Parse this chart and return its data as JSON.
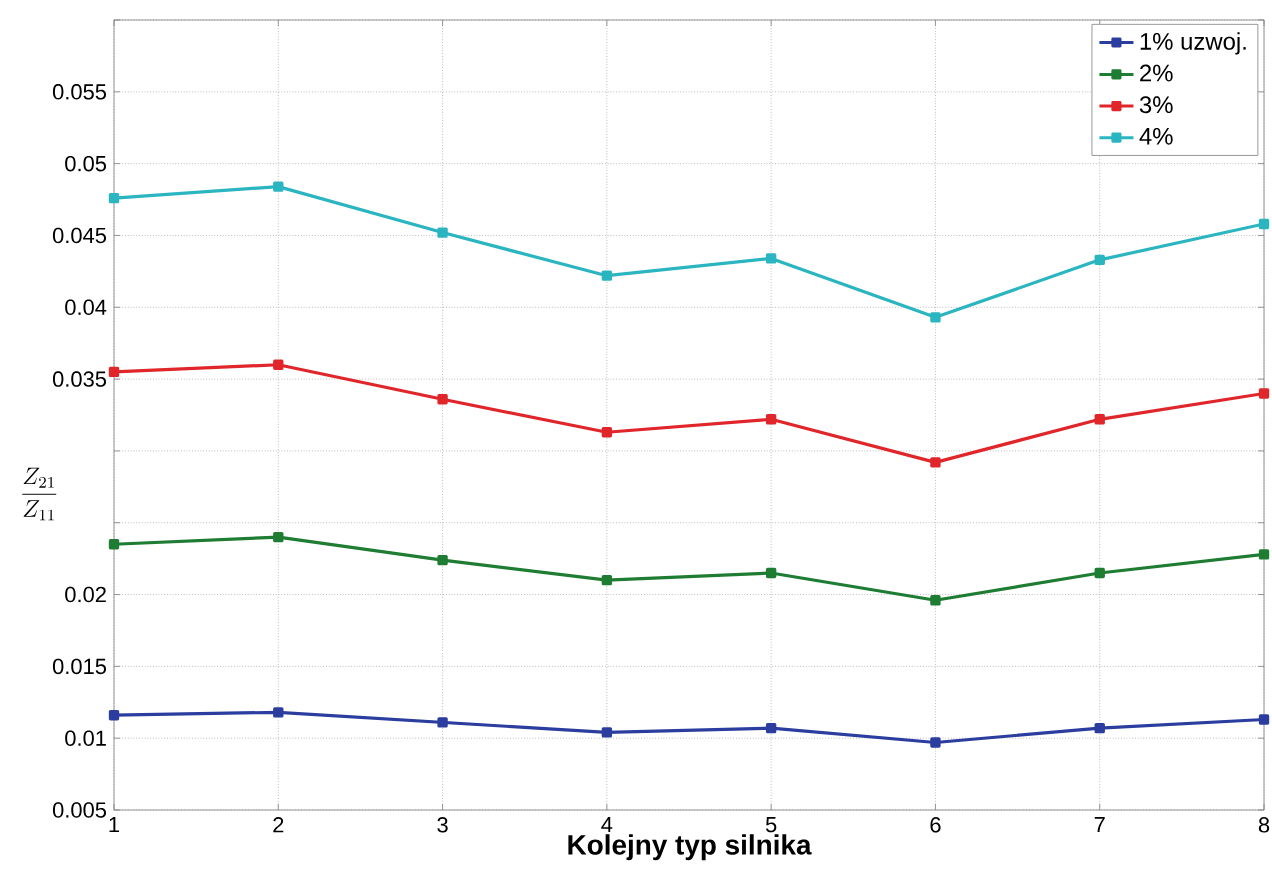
{
  "chart_data": {
    "type": "line",
    "xlabel": "Kolejny typ silnika",
    "ylabel": "\\frac{Z_{21}}{Z_{11}}",
    "x": [
      1,
      2,
      3,
      4,
      5,
      6,
      7,
      8
    ],
    "xlim": [
      1,
      8
    ],
    "xticks": [
      1,
      2,
      3,
      4,
      5,
      6,
      7,
      8
    ],
    "ylim": [
      0.005,
      0.06
    ],
    "yticks": [
      0.005,
      0.01,
      0.015,
      0.02,
      {
        "value": 0.025,
        "label": null
      },
      {
        "value": 0.03,
        "label": null
      },
      0.035,
      0.04,
      0.045,
      0.05,
      0.055,
      {
        "value": 0.06,
        "label": null
      }
    ],
    "grid": true,
    "legend": "top right",
    "marker": "square",
    "line_style": "solid",
    "series": [
      {
        "name": "1% uzwoj.",
        "color": "#2b3d9e",
        "values": [
          0.0116,
          0.0118,
          0.0111,
          0.0104,
          0.0107,
          0.0097,
          0.0107,
          0.0113
        ]
      },
      {
        "name": "2%",
        "color": "#1e7d32",
        "values": [
          0.0235,
          0.024,
          0.0224,
          0.021,
          0.0215,
          0.0196,
          0.0215,
          0.0228
        ]
      },
      {
        "name": "3%",
        "color": "#e0262a",
        "values": [
          0.0355,
          0.036,
          0.0336,
          0.0313,
          0.0322,
          0.0292,
          0.0322,
          0.034
        ]
      },
      {
        "name": "4%",
        "color": "#2ab5c0",
        "values": [
          0.0476,
          0.0484,
          0.0452,
          0.0422,
          0.0434,
          0.0393,
          0.0433,
          0.0458
        ]
      }
    ]
  }
}
